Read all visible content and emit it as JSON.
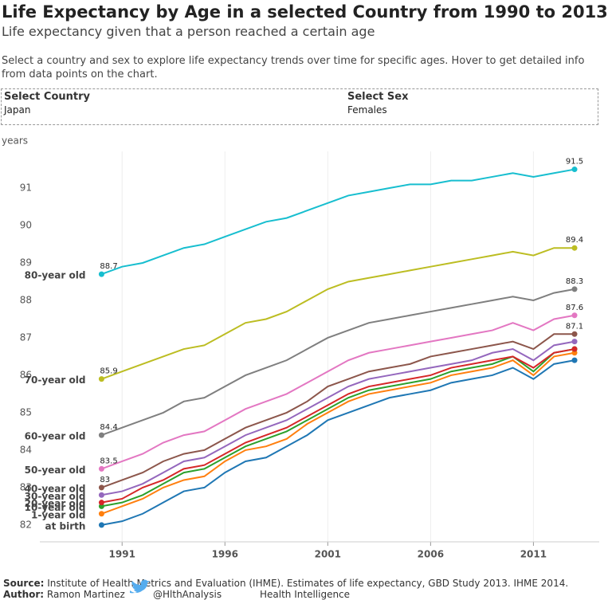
{
  "chart_data": {
    "type": "line",
    "title": "Life Expectancy by Age in a selected Country from 1990 to 2013",
    "subtitle": "Life expectancy given that a person reached a certain age",
    "y_label": "years",
    "x": [
      1990,
      1991,
      1992,
      1993,
      1994,
      1995,
      1996,
      1997,
      1998,
      1999,
      2000,
      2001,
      2002,
      2003,
      2004,
      2005,
      2006,
      2007,
      2008,
      2009,
      2010,
      2011,
      2012,
      2013
    ],
    "xlim": [
      1987,
      2014.2
    ],
    "xticks": [
      1991,
      1996,
      2001,
      2006,
      2011
    ],
    "ylim": [
      81.55,
      91.98
    ],
    "yticks": [
      82,
      83,
      84,
      85,
      86,
      87,
      88,
      89,
      90,
      91
    ],
    "grid": "x",
    "series": [
      {
        "name": "at birth",
        "color": "#1f77b4",
        "values": [
          82.0,
          82.1,
          82.3,
          82.6,
          82.9,
          83.0,
          83.4,
          83.7,
          83.8,
          84.1,
          84.4,
          84.8,
          85.0,
          85.2,
          85.4,
          85.5,
          85.6,
          85.8,
          85.9,
          86.0,
          86.2,
          85.9,
          86.3,
          86.4
        ]
      },
      {
        "name": "1-year old",
        "color": "#ff7f0e",
        "values": [
          82.3,
          82.5,
          82.7,
          83.0,
          83.2,
          83.3,
          83.7,
          84.0,
          84.1,
          84.3,
          84.7,
          85.0,
          85.3,
          85.5,
          85.6,
          85.7,
          85.8,
          86.0,
          86.1,
          86.2,
          86.4,
          86.0,
          86.5,
          86.6
        ]
      },
      {
        "name": "10-year old",
        "color": "#2ca02c",
        "values": [
          82.5,
          82.6,
          82.8,
          83.1,
          83.4,
          83.5,
          83.8,
          84.1,
          84.3,
          84.5,
          84.8,
          85.1,
          85.4,
          85.6,
          85.7,
          85.8,
          85.9,
          86.1,
          86.2,
          86.3,
          86.5,
          86.1,
          86.6,
          86.7
        ]
      },
      {
        "name": "20-year old",
        "color": "#d62728",
        "values": [
          82.6,
          82.7,
          83.0,
          83.2,
          83.5,
          83.6,
          83.9,
          84.2,
          84.4,
          84.6,
          84.9,
          85.2,
          85.5,
          85.7,
          85.8,
          85.9,
          86.0,
          86.2,
          86.3,
          86.4,
          86.5,
          86.2,
          86.6,
          86.7
        ]
      },
      {
        "name": "30-year old",
        "color": "#9467bd",
        "values": [
          82.8,
          82.9,
          83.1,
          83.4,
          83.7,
          83.8,
          84.1,
          84.4,
          84.6,
          84.8,
          85.1,
          85.4,
          85.7,
          85.9,
          86.0,
          86.1,
          86.2,
          86.3,
          86.4,
          86.6,
          86.7,
          86.4,
          86.8,
          86.9
        ]
      },
      {
        "name": "40-year old",
        "color": "#8c564b",
        "end_labels": true,
        "values": [
          83.0,
          83.2,
          83.4,
          83.7,
          83.9,
          84.0,
          84.3,
          84.6,
          84.8,
          85.0,
          85.3,
          85.7,
          85.9,
          86.1,
          86.2,
          86.3,
          86.5,
          86.6,
          86.7,
          86.8,
          86.9,
          86.7,
          87.1,
          87.1
        ]
      },
      {
        "name": "50-year old",
        "color": "#e377c2",
        "end_labels": true,
        "values": [
          83.5,
          83.7,
          83.9,
          84.2,
          84.4,
          84.5,
          84.8,
          85.1,
          85.3,
          85.5,
          85.8,
          86.1,
          86.4,
          86.6,
          86.7,
          86.8,
          86.9,
          87.0,
          87.1,
          87.2,
          87.4,
          87.2,
          87.5,
          87.6
        ]
      },
      {
        "name": "60-year old",
        "color": "#7f7f7f",
        "end_labels": true,
        "values": [
          84.4,
          84.6,
          84.8,
          85.0,
          85.3,
          85.4,
          85.7,
          86.0,
          86.2,
          86.4,
          86.7,
          87.0,
          87.2,
          87.4,
          87.5,
          87.6,
          87.7,
          87.8,
          87.9,
          88.0,
          88.1,
          88.0,
          88.2,
          88.3
        ]
      },
      {
        "name": "70-year old",
        "color": "#bcbd22",
        "end_labels": true,
        "values": [
          85.9,
          86.1,
          86.3,
          86.5,
          86.7,
          86.8,
          87.1,
          87.4,
          87.5,
          87.7,
          88.0,
          88.3,
          88.5,
          88.6,
          88.7,
          88.8,
          88.9,
          89.0,
          89.1,
          89.2,
          89.3,
          89.2,
          89.4,
          89.4
        ]
      },
      {
        "name": "80-year old",
        "color": "#17becf",
        "end_labels": true,
        "values": [
          88.7,
          88.9,
          89.0,
          89.2,
          89.4,
          89.5,
          89.7,
          89.9,
          90.1,
          90.2,
          90.4,
          90.6,
          90.8,
          90.9,
          91.0,
          91.1,
          91.1,
          91.2,
          91.2,
          91.3,
          91.4,
          91.3,
          91.4,
          91.5
        ]
      }
    ]
  },
  "header": {
    "description": "Select a country and sex to explore life expectancy trends over time for specific ages. Hover to get detailed info from data points on the chart."
  },
  "filters": [
    {
      "label": "Select Country",
      "value": "Japan"
    },
    {
      "label": "Select Sex",
      "value": "Females"
    }
  ],
  "footer": {
    "source_label": "Source:",
    "source_text": "Institute of Health Metrics and Evaluation (IHME). Estimates of life expectancy, GBD Study 2013. IHME 2014.",
    "author_label": "Author:",
    "author": "Ramon Martinez",
    "twitter": "@HlthAnalysis",
    "org": "Health Intelligence"
  }
}
